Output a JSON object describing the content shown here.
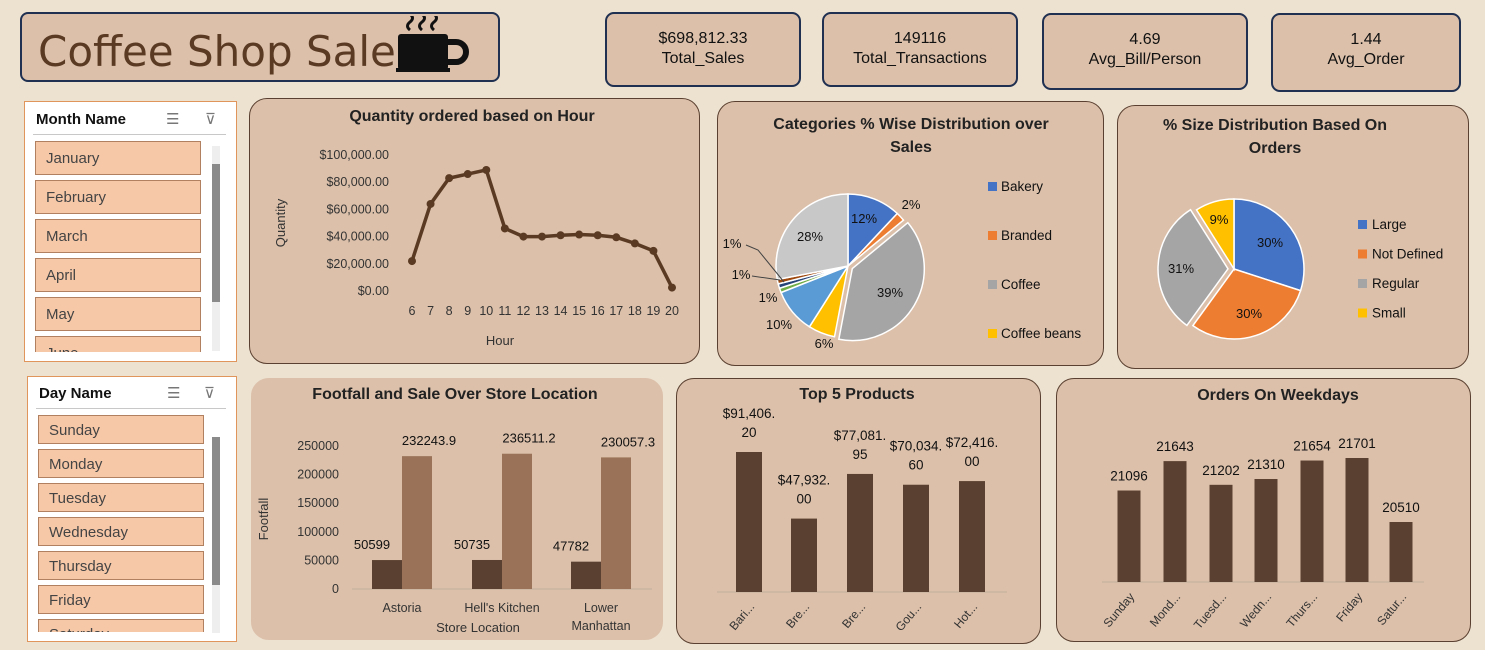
{
  "header": {
    "title": "Coffee Shop Sales"
  },
  "kpis": [
    {
      "value": "$698,812.33",
      "label": "Total_Sales"
    },
    {
      "value": "149116",
      "label": "Total_Transactions"
    },
    {
      "value": "4.69",
      "label": "Avg_Bill/Person"
    },
    {
      "value": "1.44",
      "label": "Avg_Order"
    }
  ],
  "month_slicer": {
    "title": "Month Name",
    "items": [
      "January",
      "February",
      "March",
      "April",
      "May",
      "June"
    ]
  },
  "day_slicer": {
    "title": "Day Name",
    "items": [
      "Sunday",
      "Monday",
      "Tuesday",
      "Wednesday",
      "Thursday",
      "Friday",
      "Saturday"
    ]
  },
  "colors": {
    "brown_dark": "#5a4030",
    "brown_light": "#9a7257",
    "line": "#5a3a22",
    "panel": "#dcc0aa"
  },
  "chart_data": [
    {
      "id": "hour",
      "type": "line",
      "title": "Quantity ordered based on Hour",
      "xlabel": "Hour",
      "ylabel": "Quantity",
      "ylim": [
        0,
        100000
      ],
      "yticks": [
        "$0.00",
        "$20,000.00",
        "$40,000.00",
        "$60,000.00",
        "$80,000.00",
        "$100,000.00"
      ],
      "x": [
        6,
        7,
        8,
        9,
        10,
        11,
        12,
        13,
        14,
        15,
        16,
        17,
        18,
        19,
        20
      ],
      "values": [
        22000,
        64000,
        83000,
        86000,
        89000,
        46000,
        40000,
        40000,
        41000,
        41500,
        41000,
        39500,
        35000,
        29500,
        2500
      ]
    },
    {
      "id": "categories",
      "type": "pie",
      "title": "Categories % Wise Distribution over Sales",
      "legend": [
        "Bakery",
        "Branded",
        "Coffee",
        "Coffee beans"
      ],
      "labels": [
        "Bakery",
        "Branded",
        "Coffee",
        "Coffee beans",
        "",
        "",
        "",
        "",
        ""
      ],
      "values": [
        12,
        2,
        39,
        6,
        10,
        1,
        1,
        1,
        28
      ],
      "data_labels": [
        "12%",
        "2%",
        "39%",
        "6%",
        "10%",
        "1%",
        "1%",
        "1%",
        "28%"
      ],
      "colors": [
        "#4472c4",
        "#ed7d31",
        "#a5a5a5",
        "#ffc000",
        "#5b9bd5",
        "#70ad47",
        "#264478",
        "#9e480e",
        "#c8c8c8"
      ]
    },
    {
      "id": "sizes",
      "type": "pie",
      "title": "% Size Distribution Based On Orders",
      "labels": [
        "Large",
        "Not Defined",
        "Regular",
        "Small"
      ],
      "values": [
        30,
        30,
        31,
        9
      ],
      "data_labels": [
        "30%",
        "30%",
        "31%",
        "9%"
      ],
      "colors": [
        "#4472c4",
        "#ed7d31",
        "#a5a5a5",
        "#ffc000"
      ]
    },
    {
      "id": "footfall",
      "type": "bar",
      "title": "Footfall and Sale Over Store Location",
      "xlabel": "Store Location",
      "ylabel": "Footfall",
      "ylim": [
        0,
        250000
      ],
      "yticks": [
        "0",
        "50000",
        "100000",
        "150000",
        "200000",
        "250000"
      ],
      "categories": [
        "Astoria",
        "Hell's Kitchen",
        "Lower Manhattan"
      ],
      "series": [
        {
          "values": [
            50599,
            50735,
            47782
          ],
          "labels": [
            "50599",
            "50735",
            "47782"
          ]
        },
        {
          "values": [
            232243.9,
            236511.2,
            230057.3
          ],
          "labels": [
            "232243.9",
            "236511.2",
            "230057.3"
          ]
        }
      ]
    },
    {
      "id": "products",
      "type": "bar",
      "title": "Top 5 Products",
      "categories": [
        "Bari...",
        "Bre...",
        "Bre...",
        "Gou...",
        "Hot..."
      ],
      "values": [
        91406.2,
        47932.0,
        77081.95,
        70034.6,
        72416.0
      ],
      "labels": [
        [
          "$91,406.",
          "20"
        ],
        [
          "$47,932.",
          "00"
        ],
        [
          "$77,081.",
          "95"
        ],
        [
          "$70,034.",
          "60"
        ],
        [
          "$72,416.",
          "00"
        ]
      ]
    },
    {
      "id": "weekdays",
      "type": "bar",
      "title": "Orders On Weekdays",
      "categories": [
        "Sunday",
        "Mond...",
        "Tuesd...",
        "Wedn...",
        "Thurs...",
        "Friday",
        "Satur..."
      ],
      "values": [
        21096,
        21643,
        21202,
        21310,
        21654,
        21701,
        20510
      ],
      "labels": [
        "21096",
        "21643",
        "21202",
        "21310",
        "21654",
        "21701",
        "20510"
      ]
    }
  ]
}
